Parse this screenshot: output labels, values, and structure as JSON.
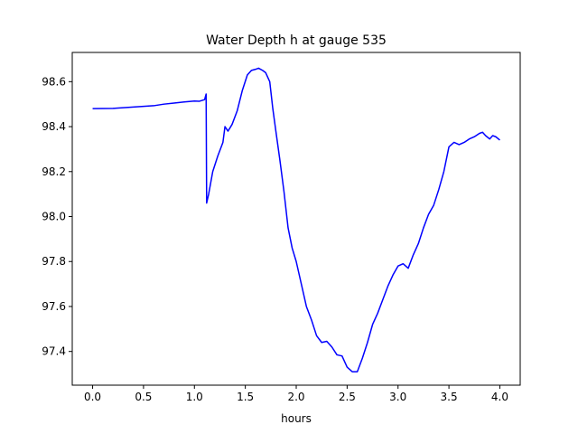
{
  "chart_data": {
    "type": "line",
    "title": "Water Depth h at gauge 535",
    "xlabel": "hours",
    "ylabel": "",
    "xlim": [
      -0.2,
      4.2
    ],
    "ylim": [
      97.25,
      98.73
    ],
    "xticks": [
      0.0,
      0.5,
      1.0,
      1.5,
      2.0,
      2.5,
      3.0,
      3.5,
      4.0
    ],
    "xtick_labels": [
      "0.0",
      "0.5",
      "1.0",
      "1.5",
      "2.0",
      "2.5",
      "3.0",
      "3.5",
      "4.0"
    ],
    "yticks": [
      97.4,
      97.6,
      97.8,
      98.0,
      98.2,
      98.4,
      98.6
    ],
    "ytick_labels": [
      "97.4",
      "97.6",
      "97.8",
      "98.0",
      "98.2",
      "98.4",
      "98.6"
    ],
    "grid": false,
    "series": [
      {
        "color": "#0000ff",
        "x": [
          0.0,
          0.2,
          0.4,
          0.6,
          0.7,
          0.8,
          0.9,
          1.0,
          1.05,
          1.1,
          1.115,
          1.12,
          1.14,
          1.18,
          1.23,
          1.28,
          1.3,
          1.33,
          1.37,
          1.42,
          1.47,
          1.52,
          1.56,
          1.6,
          1.63,
          1.67,
          1.7,
          1.74,
          1.77,
          1.8,
          1.84,
          1.88,
          1.92,
          1.96,
          2.0,
          2.05,
          2.1,
          2.15,
          2.2,
          2.25,
          2.3,
          2.35,
          2.4,
          2.45,
          2.5,
          2.55,
          2.6,
          2.65,
          2.7,
          2.75,
          2.8,
          2.85,
          2.9,
          2.95,
          3.0,
          3.05,
          3.1,
          3.15,
          3.2,
          3.25,
          3.3,
          3.35,
          3.4,
          3.45,
          3.5,
          3.55,
          3.6,
          3.65,
          3.7,
          3.75,
          3.8,
          3.83,
          3.86,
          3.9,
          3.93,
          3.96,
          4.0
        ],
        "y": [
          98.48,
          98.481,
          98.487,
          98.493,
          98.5,
          98.505,
          98.51,
          98.514,
          98.513,
          98.52,
          98.545,
          98.06,
          98.1,
          98.2,
          98.27,
          98.33,
          98.4,
          98.38,
          98.41,
          98.47,
          98.56,
          98.63,
          98.65,
          98.655,
          98.66,
          98.65,
          98.64,
          98.6,
          98.48,
          98.38,
          98.25,
          98.11,
          97.95,
          97.86,
          97.8,
          97.7,
          97.6,
          97.54,
          97.47,
          97.44,
          97.445,
          97.42,
          97.385,
          97.38,
          97.33,
          97.31,
          97.31,
          97.37,
          97.44,
          97.52,
          97.57,
          97.63,
          97.69,
          97.74,
          97.78,
          97.79,
          97.77,
          97.83,
          97.88,
          97.95,
          98.01,
          98.05,
          98.12,
          98.2,
          98.31,
          98.33,
          98.32,
          98.33,
          98.345,
          98.355,
          98.37,
          98.375,
          98.36,
          98.345,
          98.36,
          98.355,
          98.34
        ]
      }
    ]
  }
}
